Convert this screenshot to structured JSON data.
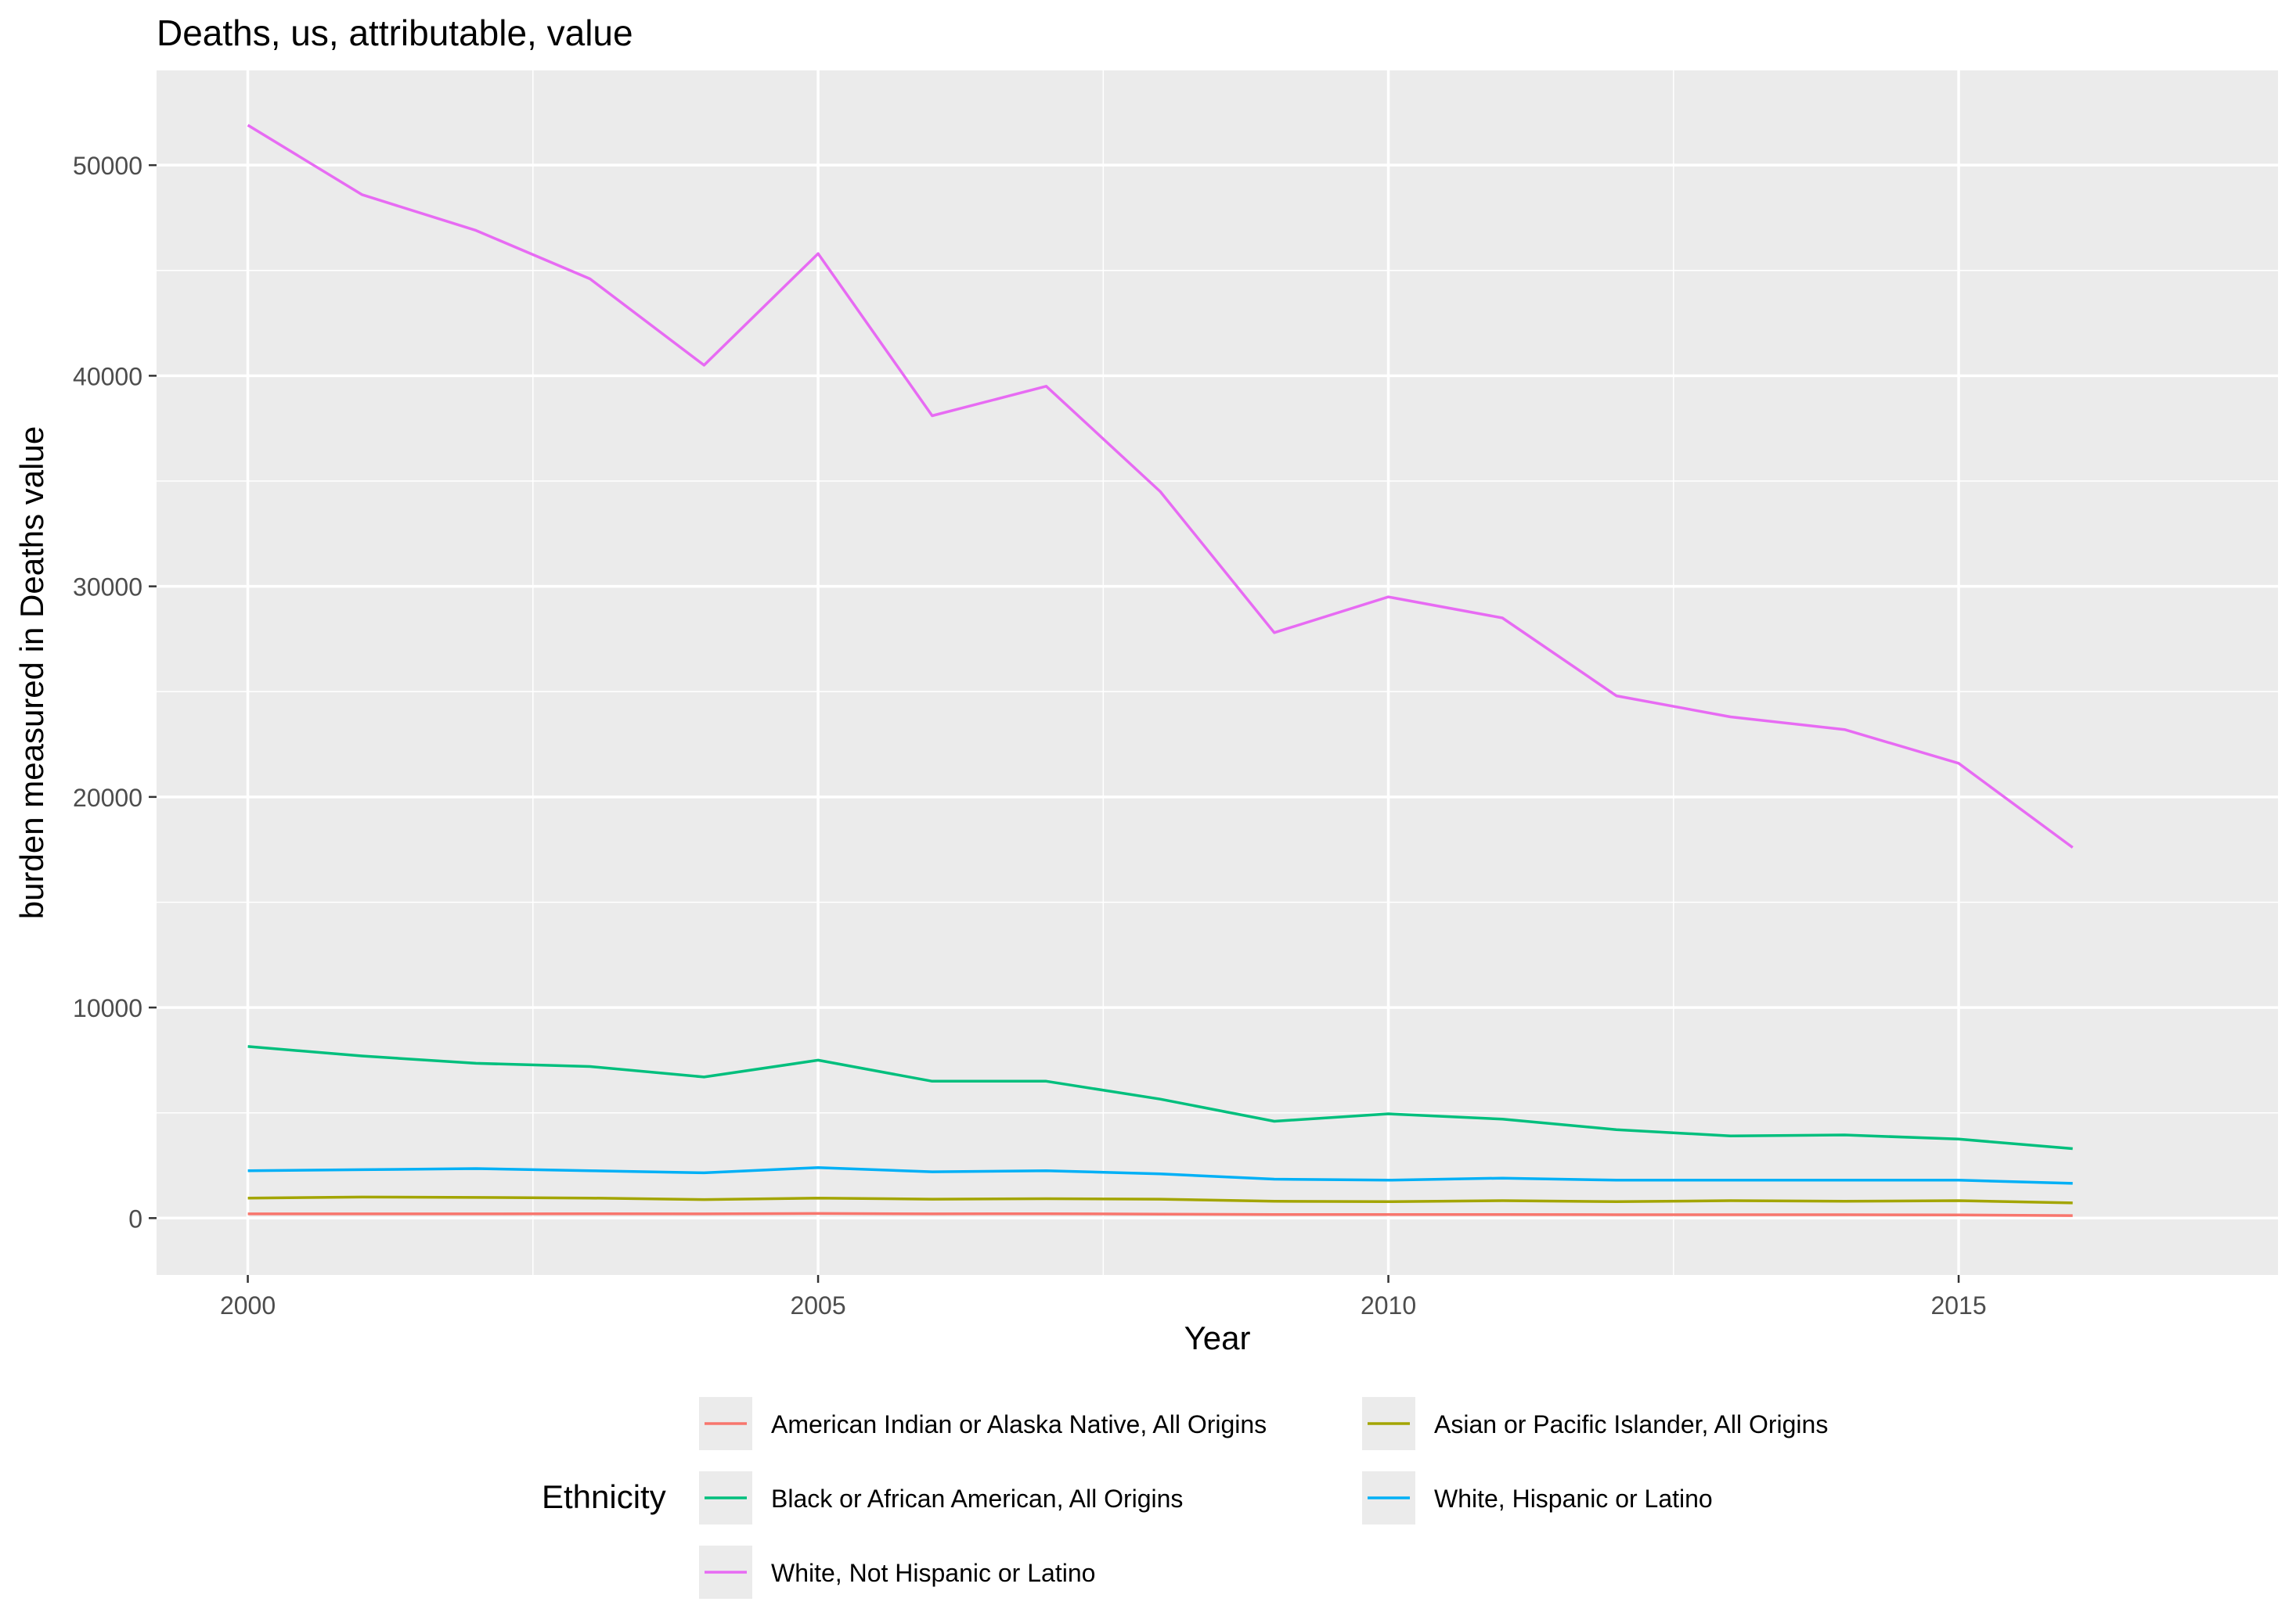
{
  "chart_data": {
    "type": "line",
    "title": "Deaths, us, attributable, value",
    "xlabel": "Year",
    "ylabel": "burden measured in Deaths value",
    "xlim": [
      1999.2,
      2017.8
    ],
    "ylim": [
      -2700,
      54500
    ],
    "x_ticks": [
      2000,
      2005,
      2010,
      2015
    ],
    "y_ticks": [
      0,
      10000,
      20000,
      30000,
      40000,
      50000
    ],
    "grid": true,
    "legend": {
      "title": "Ethnicity",
      "position": "bottom"
    },
    "x": [
      2000,
      2001,
      2002,
      2003,
      2004,
      2005,
      2006,
      2007,
      2008,
      2009,
      2010,
      2011,
      2012,
      2013,
      2014,
      2015,
      2016
    ],
    "series": [
      {
        "name": "American Indian or Alaska Native, All Origins",
        "color": "#F8766D",
        "values": [
          200,
          200,
          200,
          210,
          200,
          220,
          200,
          210,
          190,
          170,
          170,
          170,
          160,
          160,
          160,
          150,
          120
        ]
      },
      {
        "name": "Asian or Pacific Islander, All Origins",
        "color": "#A3A500",
        "values": [
          950,
          1000,
          980,
          950,
          880,
          950,
          900,
          920,
          900,
          800,
          780,
          830,
          780,
          830,
          800,
          830,
          720
        ]
      },
      {
        "name": "Black or African American, All Origins",
        "color": "#00BF7D",
        "values": [
          8150,
          7700,
          7350,
          7200,
          6700,
          7500,
          6500,
          6500,
          5650,
          4600,
          4950,
          4700,
          4200,
          3900,
          3950,
          3750,
          3300
        ]
      },
      {
        "name": "White, Hispanic or Latino",
        "color": "#00B0F6",
        "values": [
          2250,
          2300,
          2350,
          2250,
          2150,
          2400,
          2200,
          2250,
          2100,
          1850,
          1800,
          1900,
          1800,
          1800,
          1800,
          1800,
          1650
        ]
      },
      {
        "name": "White, Not Hispanic or Latino",
        "color": "#E76BF3",
        "values": [
          51900,
          48600,
          46900,
          44600,
          40500,
          45800,
          38100,
          39500,
          34500,
          27800,
          29500,
          28500,
          24800,
          23800,
          23200,
          21600,
          17600
        ]
      }
    ]
  }
}
